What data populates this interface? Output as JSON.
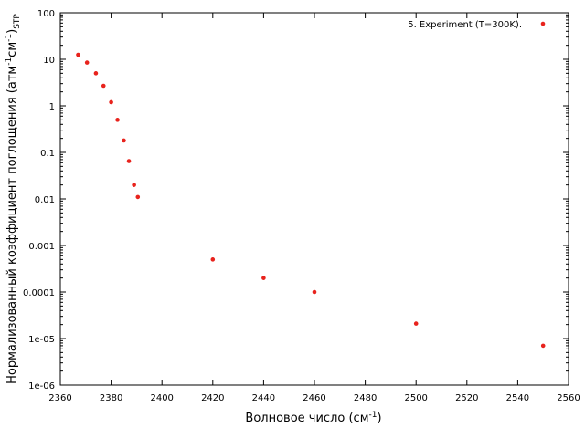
{
  "chart_data": {
    "type": "scatter",
    "title": "",
    "xlabel": "Волновое число (см",
    "xlabel_sup": "-1",
    "xlabel_tail": ")",
    "ylabel": "Нормализованный коэффициент поглощения (атм",
    "ylabel_sup1": "-1",
    "ylabel_mid": "см",
    "ylabel_sup2": "-1",
    "ylabel_tail": ")",
    "ylabel_sub": "STP",
    "xlim": [
      2360,
      2560
    ],
    "ylim": [
      1e-06,
      100
    ],
    "yscale": "log",
    "grid": false,
    "legend_position": "top-right",
    "x_ticks": [
      2360,
      2380,
      2400,
      2420,
      2440,
      2460,
      2480,
      2500,
      2520,
      2540,
      2560
    ],
    "x_tick_labels": [
      "2360",
      "2380",
      "2400",
      "2420",
      "2440",
      "2460",
      "2480",
      "2500",
      "2520",
      "2540",
      "2560"
    ],
    "y_ticks": [
      1e-06,
      1e-05,
      0.0001,
      0.001,
      0.01,
      0.1,
      1,
      10,
      100
    ],
    "y_tick_labels": [
      "1e-06",
      "1e-05",
      "0.0001",
      "0.001",
      "0.01",
      "0.1",
      "1",
      "10",
      "100"
    ],
    "series": [
      {
        "name": "5. Experiment (T=300K).",
        "color": "#e8231d",
        "marker": "circle",
        "points": [
          {
            "x": 2367,
            "y": 12.5
          },
          {
            "x": 2370.5,
            "y": 8.5
          },
          {
            "x": 2374,
            "y": 5.0
          },
          {
            "x": 2377,
            "y": 2.7
          },
          {
            "x": 2380,
            "y": 1.2
          },
          {
            "x": 2382.5,
            "y": 0.5
          },
          {
            "x": 2385,
            "y": 0.18
          },
          {
            "x": 2387,
            "y": 0.065
          },
          {
            "x": 2389,
            "y": 0.02
          },
          {
            "x": 2390.5,
            "y": 0.011
          },
          {
            "x": 2420,
            "y": 0.0005
          },
          {
            "x": 2440,
            "y": 0.0002
          },
          {
            "x": 2460,
            "y": 0.0001
          },
          {
            "x": 2500,
            "y": 2.1e-05
          },
          {
            "x": 2550,
            "y": 7e-06
          }
        ]
      }
    ]
  }
}
